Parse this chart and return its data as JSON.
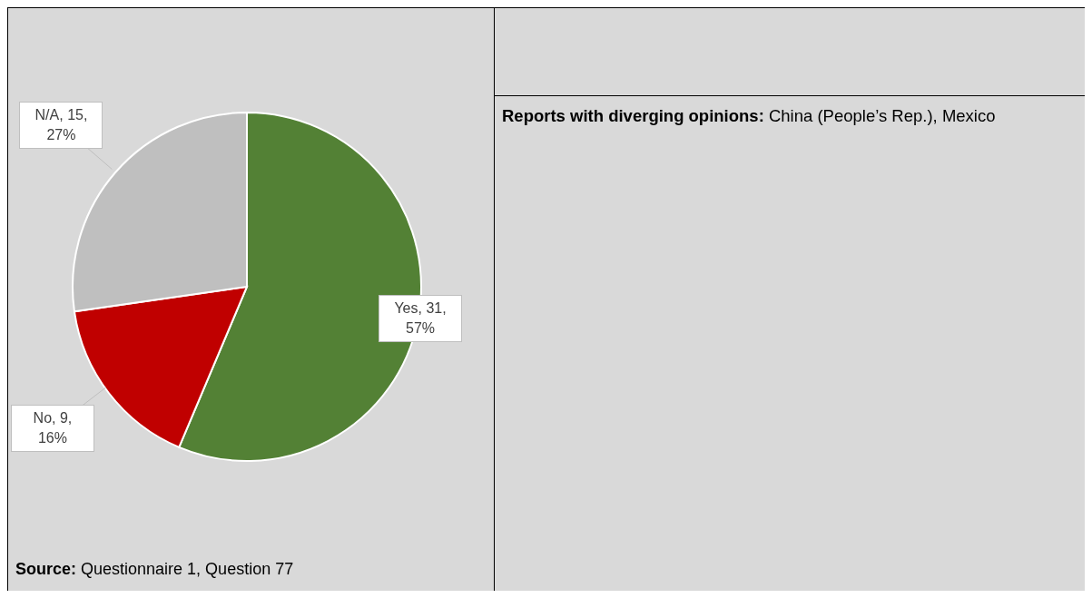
{
  "chart_data": {
    "type": "pie",
    "categories": [
      "Yes",
      "No",
      "N/A"
    ],
    "values": [
      31,
      9,
      15
    ],
    "colors": [
      "#538135",
      "#c00000",
      "#bfbfbf"
    ],
    "value_labels": [
      "31, 57%",
      "9, 16%",
      "15, 27%"
    ],
    "annotations": [
      "Source: Questionnaire 1, Question 77",
      "Reports with diverging opinions: China (People’s Rep.), Mexico"
    ]
  }
}
